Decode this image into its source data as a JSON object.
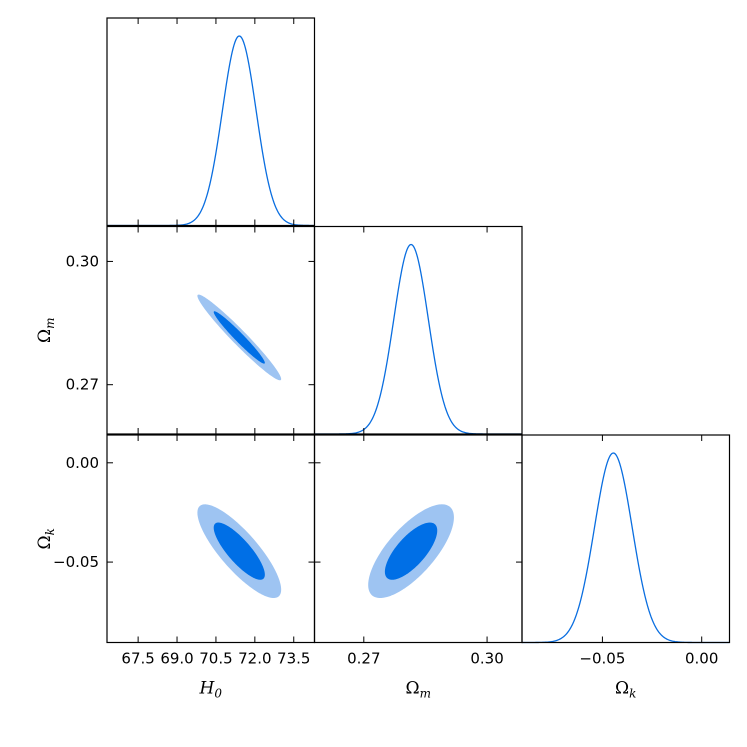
{
  "chart_data": {
    "type": "corner",
    "colors": {
      "line": "#0a6ee0",
      "contour_68": "#006fe6",
      "contour_95": "#9ec4f2"
    },
    "parameters": [
      {
        "symbol": "H",
        "subscript": "0",
        "range": [
          66.3,
          74.3
        ],
        "ticks": [
          67.5,
          69.0,
          70.5,
          72.0,
          73.5
        ],
        "tick_labels": [
          "67.5",
          "69.0",
          "70.5",
          "72.0",
          "73.5"
        ],
        "mean": 71.4,
        "sigma": 0.65
      },
      {
        "symbol": "Ω",
        "subscript": "m",
        "range": [
          0.258,
          0.3085
        ],
        "ticks": [
          0.27,
          0.3
        ],
        "tick_labels": [
          "0.27",
          "0.30"
        ],
        "mean": 0.2815,
        "sigma": 0.0042
      },
      {
        "symbol": "Ω",
        "subscript": "k",
        "range": [
          -0.0905,
          0.014
        ],
        "ticks": [
          -0.05,
          0.0
        ],
        "tick_labels": [
          "−0.05",
          "0.00"
        ],
        "mean": -0.0445,
        "sigma": 0.0095
      }
    ],
    "contours_2d": [
      {
        "x_param": 0,
        "y_param": 1,
        "center": [
          71.4,
          0.2815
        ],
        "sigma_x": 0.65,
        "sigma_y": 0.0042,
        "correlation": -0.97
      },
      {
        "x_param": 0,
        "y_param": 2,
        "center": [
          71.4,
          -0.0445
        ],
        "sigma_x": 0.65,
        "sigma_y": 0.0095,
        "correlation": -0.82
      },
      {
        "x_param": 1,
        "y_param": 2,
        "center": [
          0.2815,
          -0.0445
        ],
        "sigma_x": 0.0042,
        "sigma_y": 0.0095,
        "correlation": 0.72
      }
    ]
  }
}
